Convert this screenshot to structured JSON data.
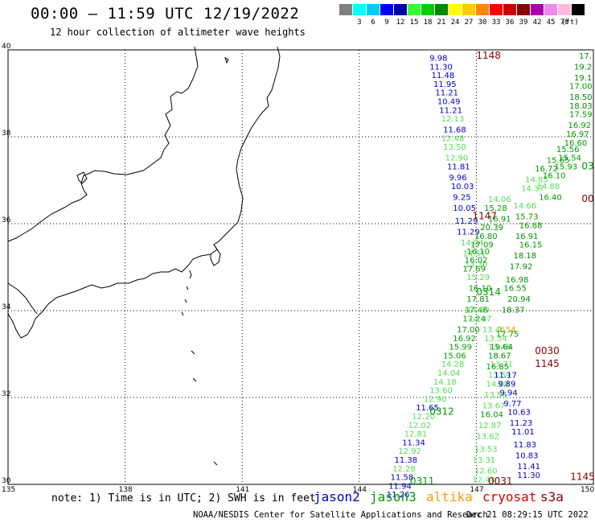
{
  "header": {
    "title": "00:00 – 11:59 UTC 12/19/2022",
    "subtitle": "12 hour collection of altimeter wave heights"
  },
  "scale": {
    "unit_label": "(ft)",
    "swatches": [
      {
        "color": "#808080",
        "label": ""
      },
      {
        "color": "#00ffff",
        "label": "3"
      },
      {
        "color": "#00ccff",
        "label": "6"
      },
      {
        "color": "#0000ff",
        "label": "9"
      },
      {
        "color": "#0000aa",
        "label": "12"
      },
      {
        "color": "#33ff33",
        "label": "15"
      },
      {
        "color": "#00cc00",
        "label": "18"
      },
      {
        "color": "#008800",
        "label": "21"
      },
      {
        "color": "#ffff00",
        "label": "24"
      },
      {
        "color": "#ffcc00",
        "label": "27"
      },
      {
        "color": "#ff8800",
        "label": "30"
      },
      {
        "color": "#ff0000",
        "label": "33"
      },
      {
        "color": "#cc0000",
        "label": "36"
      },
      {
        "color": "#880000",
        "label": "39"
      },
      {
        "color": "#aa00aa",
        "label": "42"
      },
      {
        "color": "#ee88ee",
        "label": "45"
      },
      {
        "color": "#ffbbdd",
        "label": "70"
      },
      {
        "color": "#000000",
        "label": ""
      }
    ]
  },
  "axes": {
    "lat_labels": [
      {
        "v": 40
      },
      {
        "v": 38
      },
      {
        "v": 36
      },
      {
        "v": 34
      },
      {
        "v": 32
      },
      {
        "v": 30
      }
    ],
    "lon_labels": [
      {
        "v": 135
      },
      {
        "v": 138
      },
      {
        "v": 141
      },
      {
        "v": 144
      },
      {
        "v": 147
      },
      {
        "v": 150
      }
    ]
  },
  "colors": {
    "jason2": "#0000cc",
    "jason3": "#009900",
    "altika": "#ff9900",
    "cryosat": "#dd0000",
    "s3a": "#880000",
    "light_green": "#55dd55",
    "dark_green": "#008800"
  },
  "track_labels": [
    {
      "t": "1148",
      "lon": 147.0,
      "lat": 39.8,
      "c": "s3a"
    },
    {
      "t": "1147",
      "lon": 146.9,
      "lat": 36.1,
      "c": "s3a"
    },
    {
      "t": "0314",
      "lon": 147.0,
      "lat": 34.35,
      "c": "jason3"
    },
    {
      "t": "0312",
      "lon": 145.8,
      "lat": 31.6,
      "c": "jason3"
    },
    {
      "t": "0311",
      "lon": 145.3,
      "lat": 30.0,
      "c": "jason3"
    },
    {
      "t": "0030",
      "lon": 148.5,
      "lat": 33.0,
      "c": "s3a"
    },
    {
      "t": "1145",
      "lon": 148.5,
      "lat": 32.7,
      "c": "s3a"
    },
    {
      "t": "0031",
      "lon": 147.3,
      "lat": 30.0,
      "c": "s3a"
    },
    {
      "t": "1145",
      "lon": 149.7,
      "lat": 30.1,
      "c": "s3a"
    },
    {
      "t": "03",
      "lon": 149.7,
      "lat": 37.25,
      "c": "jason3"
    },
    {
      "t": "00",
      "lon": 149.7,
      "lat": 36.5,
      "c": "s3a"
    }
  ],
  "wave_values": [
    {
      "t": "9.98",
      "lon": 145.8,
      "lat": 39.75,
      "c": "jason2"
    },
    {
      "t": "11.30",
      "lon": 145.8,
      "lat": 39.55,
      "c": "jason2"
    },
    {
      "t": "11.48",
      "lon": 145.85,
      "lat": 39.35,
      "c": "jason2"
    },
    {
      "t": "11.95",
      "lon": 145.9,
      "lat": 39.15,
      "c": "jason2"
    },
    {
      "t": "11.21",
      "lon": 145.95,
      "lat": 38.95,
      "c": "jason2"
    },
    {
      "t": "10.49",
      "lon": 146.0,
      "lat": 38.75,
      "c": "jason2"
    },
    {
      "t": "11.21",
      "lon": 146.05,
      "lat": 38.55,
      "c": "jason2"
    },
    {
      "t": "12.13",
      "lon": 146.1,
      "lat": 38.35,
      "c": "light_green"
    },
    {
      "t": "11.68",
      "lon": 146.15,
      "lat": 38.1,
      "c": "jason2"
    },
    {
      "t": "12.48",
      "lon": 146.1,
      "lat": 37.9,
      "c": "light_green"
    },
    {
      "t": "13.50",
      "lon": 146.15,
      "lat": 37.7,
      "c": "light_green"
    },
    {
      "t": "12.90",
      "lon": 146.2,
      "lat": 37.45,
      "c": "light_green"
    },
    {
      "t": "11.81",
      "lon": 146.25,
      "lat": 37.25,
      "c": "jason2"
    },
    {
      "t": "9.96",
      "lon": 146.3,
      "lat": 37.0,
      "c": "jason2"
    },
    {
      "t": "10.03",
      "lon": 146.35,
      "lat": 36.8,
      "c": "jason2"
    },
    {
      "t": "9.25",
      "lon": 146.4,
      "lat": 36.55,
      "c": "jason2"
    },
    {
      "t": "10.05",
      "lon": 146.4,
      "lat": 36.3,
      "c": "jason2"
    },
    {
      "t": "11.29",
      "lon": 146.45,
      "lat": 36.0,
      "c": "jason2"
    },
    {
      "t": "11.29",
      "lon": 146.5,
      "lat": 35.75,
      "c": "jason2"
    },
    {
      "t": "14.04",
      "lon": 146.6,
      "lat": 35.5,
      "c": "light_green"
    },
    {
      "t": "13.51",
      "lon": 146.65,
      "lat": 35.25,
      "c": "light_green"
    },
    {
      "t": "13.30",
      "lon": 146.7,
      "lat": 35.0,
      "c": "light_green"
    },
    {
      "t": "15.29",
      "lon": 146.75,
      "lat": 34.7,
      "c": "light_green"
    },
    {
      "t": "16.10",
      "lon": 146.8,
      "lat": 34.45,
      "c": "jason3"
    },
    {
      "t": "17.81",
      "lon": 146.75,
      "lat": 34.2,
      "c": "jason3"
    },
    {
      "t": "17.48",
      "lon": 146.7,
      "lat": 33.95,
      "c": "jason3"
    },
    {
      "t": "17.24",
      "lon": 146.65,
      "lat": 33.75,
      "c": "jason3"
    },
    {
      "t": "17.00",
      "lon": 146.5,
      "lat": 33.5,
      "c": "jason3"
    },
    {
      "t": "16.92",
      "lon": 146.4,
      "lat": 33.3,
      "c": "jason3"
    },
    {
      "t": "15.99",
      "lon": 146.3,
      "lat": 33.1,
      "c": "jason3"
    },
    {
      "t": "15.06",
      "lon": 146.15,
      "lat": 32.9,
      "c": "jason3"
    },
    {
      "t": "14.28",
      "lon": 146.1,
      "lat": 32.7,
      "c": "light_green"
    },
    {
      "t": "14.04",
      "lon": 146.0,
      "lat": 32.5,
      "c": "light_green"
    },
    {
      "t": "14.18",
      "lon": 145.9,
      "lat": 32.3,
      "c": "light_green"
    },
    {
      "t": "13.60",
      "lon": 145.8,
      "lat": 32.1,
      "c": "light_green"
    },
    {
      "t": "12.90",
      "lon": 145.65,
      "lat": 31.9,
      "c": "light_green"
    },
    {
      "t": "11.65",
      "lon": 145.45,
      "lat": 31.7,
      "c": "jason2"
    },
    {
      "t": "12.20",
      "lon": 145.35,
      "lat": 31.5,
      "c": "light_green"
    },
    {
      "t": "12.02",
      "lon": 145.25,
      "lat": 31.3,
      "c": "light_green"
    },
    {
      "t": "12.81",
      "lon": 145.15,
      "lat": 31.1,
      "c": "light_green"
    },
    {
      "t": "11.34",
      "lon": 145.1,
      "lat": 30.9,
      "c": "jason2"
    },
    {
      "t": "12.92",
      "lon": 145.0,
      "lat": 30.7,
      "c": "light_green"
    },
    {
      "t": "11.38",
      "lon": 144.9,
      "lat": 30.5,
      "c": "jason2"
    },
    {
      "t": "12.28",
      "lon": 144.85,
      "lat": 30.3,
      "c": "light_green"
    },
    {
      "t": "11.58",
      "lon": 144.8,
      "lat": 30.1,
      "c": "jason2"
    },
    {
      "t": "11.94",
      "lon": 144.75,
      "lat": 29.9,
      "c": "jason2"
    },
    {
      "t": "11.26",
      "lon": 144.7,
      "lat": 29.7,
      "c": "jason2"
    },
    {
      "t": "14.06",
      "lon": 147.3,
      "lat": 36.5,
      "c": "light_green"
    },
    {
      "t": "15.28",
      "lon": 147.2,
      "lat": 36.3,
      "c": "jason3"
    },
    {
      "t": "16.91",
      "lon": 147.3,
      "lat": 36.05,
      "c": "jason3"
    },
    {
      "t": "20.39",
      "lon": 147.1,
      "lat": 35.85,
      "c": "dark_green"
    },
    {
      "t": "16.80",
      "lon": 146.95,
      "lat": 35.65,
      "c": "jason3"
    },
    {
      "t": "17.09",
      "lon": 146.85,
      "lat": 35.45,
      "c": "jason3"
    },
    {
      "t": "16.10",
      "lon": 146.75,
      "lat": 35.3,
      "c": "jason3"
    },
    {
      "t": "16.02",
      "lon": 146.7,
      "lat": 35.1,
      "c": "jason3"
    },
    {
      "t": "17.69",
      "lon": 146.65,
      "lat": 34.9,
      "c": "jason3"
    },
    {
      "t": "14.59",
      "lon": 146.75,
      "lat": 33.95,
      "c": "light_green"
    },
    {
      "t": "14.37",
      "lon": 146.8,
      "lat": 33.75,
      "c": "light_green"
    },
    {
      "t": "13.46",
      "lon": 147.15,
      "lat": 33.5,
      "c": "light_green"
    },
    {
      "t": "13.34",
      "lon": 147.2,
      "lat": 33.3,
      "c": "light_green"
    },
    {
      "t": "13.46",
      "lon": 147.3,
      "lat": 33.1,
      "c": "light_green"
    },
    {
      "t": "13.71",
      "lon": 147.35,
      "lat": 32.7,
      "c": "light_green"
    },
    {
      "t": "13.59",
      "lon": 147.3,
      "lat": 32.45,
      "c": "light_green"
    },
    {
      "t": "14.00",
      "lon": 147.25,
      "lat": 32.25,
      "c": "light_green"
    },
    {
      "t": "13.54",
      "lon": 147.2,
      "lat": 32.0,
      "c": "light_green"
    },
    {
      "t": "13.67",
      "lon": 147.15,
      "lat": 31.75,
      "c": "light_green"
    },
    {
      "t": "16.04",
      "lon": 147.1,
      "lat": 31.55,
      "c": "jason3"
    },
    {
      "t": "12.87",
      "lon": 147.05,
      "lat": 31.3,
      "c": "light_green"
    },
    {
      "t": "13.62",
      "lon": 147.0,
      "lat": 31.05,
      "c": "light_green"
    },
    {
      "t": "13.53",
      "lon": 146.95,
      "lat": 30.75,
      "c": "light_green"
    },
    {
      "t": "13.31",
      "lon": 146.9,
      "lat": 30.5,
      "c": "light_green"
    },
    {
      "t": "12.60",
      "lon": 146.95,
      "lat": 30.25,
      "c": "light_green"
    },
    {
      "t": "12.44",
      "lon": 146.9,
      "lat": 30.05,
      "c": "light_green"
    },
    {
      "t": "14.66",
      "lon": 147.95,
      "lat": 36.35,
      "c": "light_green"
    },
    {
      "t": "15.73",
      "lon": 148.0,
      "lat": 36.1,
      "c": "jason3"
    },
    {
      "t": "16.88",
      "lon": 148.1,
      "lat": 35.9,
      "c": "jason3"
    },
    {
      "t": "16.91",
      "lon": 148.0,
      "lat": 35.65,
      "c": "jason3"
    },
    {
      "t": "16.15",
      "lon": 148.1,
      "lat": 35.45,
      "c": "jason3"
    },
    {
      "t": "18.18",
      "lon": 147.95,
      "lat": 35.2,
      "c": "dark_green"
    },
    {
      "t": "17.92",
      "lon": 147.85,
      "lat": 34.95,
      "c": "dark_green"
    },
    {
      "t": "16.98",
      "lon": 147.75,
      "lat": 34.65,
      "c": "jason3"
    },
    {
      "t": "16.55",
      "lon": 147.7,
      "lat": 34.45,
      "c": "jason3"
    },
    {
      "t": "20.94",
      "lon": 147.8,
      "lat": 34.2,
      "c": "dark_green"
    },
    {
      "t": "18.37",
      "lon": 147.65,
      "lat": 33.95,
      "c": "dark_green"
    },
    {
      "t": "17.75",
      "lon": 147.5,
      "lat": 33.4,
      "c": "jason3"
    },
    {
      "t": "19.64",
      "lon": 147.35,
      "lat": 33.1,
      "c": "dark_green"
    },
    {
      "t": "18.67",
      "lon": 147.3,
      "lat": 32.9,
      "c": "dark_green"
    },
    {
      "t": "16.85",
      "lon": 147.25,
      "lat": 32.65,
      "c": "jason3"
    },
    {
      "t": "11.17",
      "lon": 147.45,
      "lat": 32.45,
      "c": "jason2"
    },
    {
      "t": "9.89",
      "lon": 147.55,
      "lat": 32.25,
      "c": "jason2"
    },
    {
      "t": "9.94",
      "lon": 147.6,
      "lat": 32.05,
      "c": "jason2"
    },
    {
      "t": "9.77",
      "lon": 147.7,
      "lat": 31.8,
      "c": "jason2"
    },
    {
      "t": "10.63",
      "lon": 147.8,
      "lat": 31.6,
      "c": "jason2"
    },
    {
      "t": "11.23",
      "lon": 147.85,
      "lat": 31.35,
      "c": "jason2"
    },
    {
      "t": "11.01",
      "lon": 147.9,
      "lat": 31.15,
      "c": "jason2"
    },
    {
      "t": "11.83",
      "lon": 147.95,
      "lat": 30.85,
      "c": "jason2"
    },
    {
      "t": "10.83",
      "lon": 148.0,
      "lat": 30.6,
      "c": "jason2"
    },
    {
      "t": "11.41",
      "lon": 148.05,
      "lat": 30.35,
      "c": "jason2"
    },
    {
      "t": "11.30",
      "lon": 148.05,
      "lat": 30.15,
      "c": "jason2"
    },
    {
      "t": "16.40",
      "lon": 148.6,
      "lat": 36.55,
      "c": "jason3"
    },
    {
      "t": "14.88",
      "lon": 148.55,
      "lat": 36.8,
      "c": "light_green"
    },
    {
      "t": "14.37",
      "lon": 148.15,
      "lat": 36.75,
      "c": "light_green"
    },
    {
      "t": "14.85",
      "lon": 148.25,
      "lat": 36.95,
      "c": "light_green"
    },
    {
      "t": "16.10",
      "lon": 148.7,
      "lat": 37.05,
      "c": "jason3"
    },
    {
      "t": "16.72",
      "lon": 148.5,
      "lat": 37.2,
      "c": "jason3"
    },
    {
      "t": "15.93",
      "lon": 149.0,
      "lat": 37.25,
      "c": "jason3"
    },
    {
      "t": "15.65",
      "lon": 148.8,
      "lat": 37.4,
      "c": "jason3"
    },
    {
      "t": "15.54",
      "lon": 149.1,
      "lat": 37.45,
      "c": "jason3"
    },
    {
      "t": "15.56",
      "lon": 149.05,
      "lat": 37.65,
      "c": "jason3"
    },
    {
      "t": "16.60",
      "lon": 149.25,
      "lat": 37.8,
      "c": "jason3"
    },
    {
      "t": "16.97",
      "lon": 149.3,
      "lat": 38.0,
      "c": "jason3"
    },
    {
      "t": "16.92",
      "lon": 149.35,
      "lat": 38.2,
      "c": "jason3"
    },
    {
      "t": "17.59",
      "lon": 149.45,
      "lat": 38.45,
      "c": "jason3"
    },
    {
      "t": "18.03",
      "lon": 149.5,
      "lat": 38.65,
      "c": "dark_green"
    },
    {
      "t": "18.50",
      "lon": 149.55,
      "lat": 38.85,
      "c": "dark_green"
    },
    {
      "t": "17.00",
      "lon": 149.6,
      "lat": 39.1,
      "c": "jason3"
    },
    {
      "t": "19.1",
      "lon": 149.75,
      "lat": 39.3,
      "c": "dark_green"
    },
    {
      "t": "19.2",
      "lon": 149.75,
      "lat": 39.55,
      "c": "dark_green"
    },
    {
      "t": "17.",
      "lon": 149.8,
      "lat": 39.8,
      "c": "jason3"
    },
    {
      "t": "1.54",
      "lon": 147.55,
      "lat": 33.5,
      "c": "altika"
    }
  ],
  "footer": {
    "note": "note: 1) Time is in UTC; 2) SWH is in feet",
    "legend": [
      {
        "name": "jason2",
        "c": "jason2"
      },
      {
        "name": "jason3",
        "c": "jason3"
      },
      {
        "name": "altika",
        "c": "altika"
      },
      {
        "name": "cryosat",
        "c": "cryosat"
      },
      {
        "name": "s3a",
        "c": "s3a"
      }
    ],
    "credit": "NOAA/NESDIS Center for Satellite Applications and Research",
    "timestamp": "Dec 21 08:29:15 UTC 2022"
  }
}
